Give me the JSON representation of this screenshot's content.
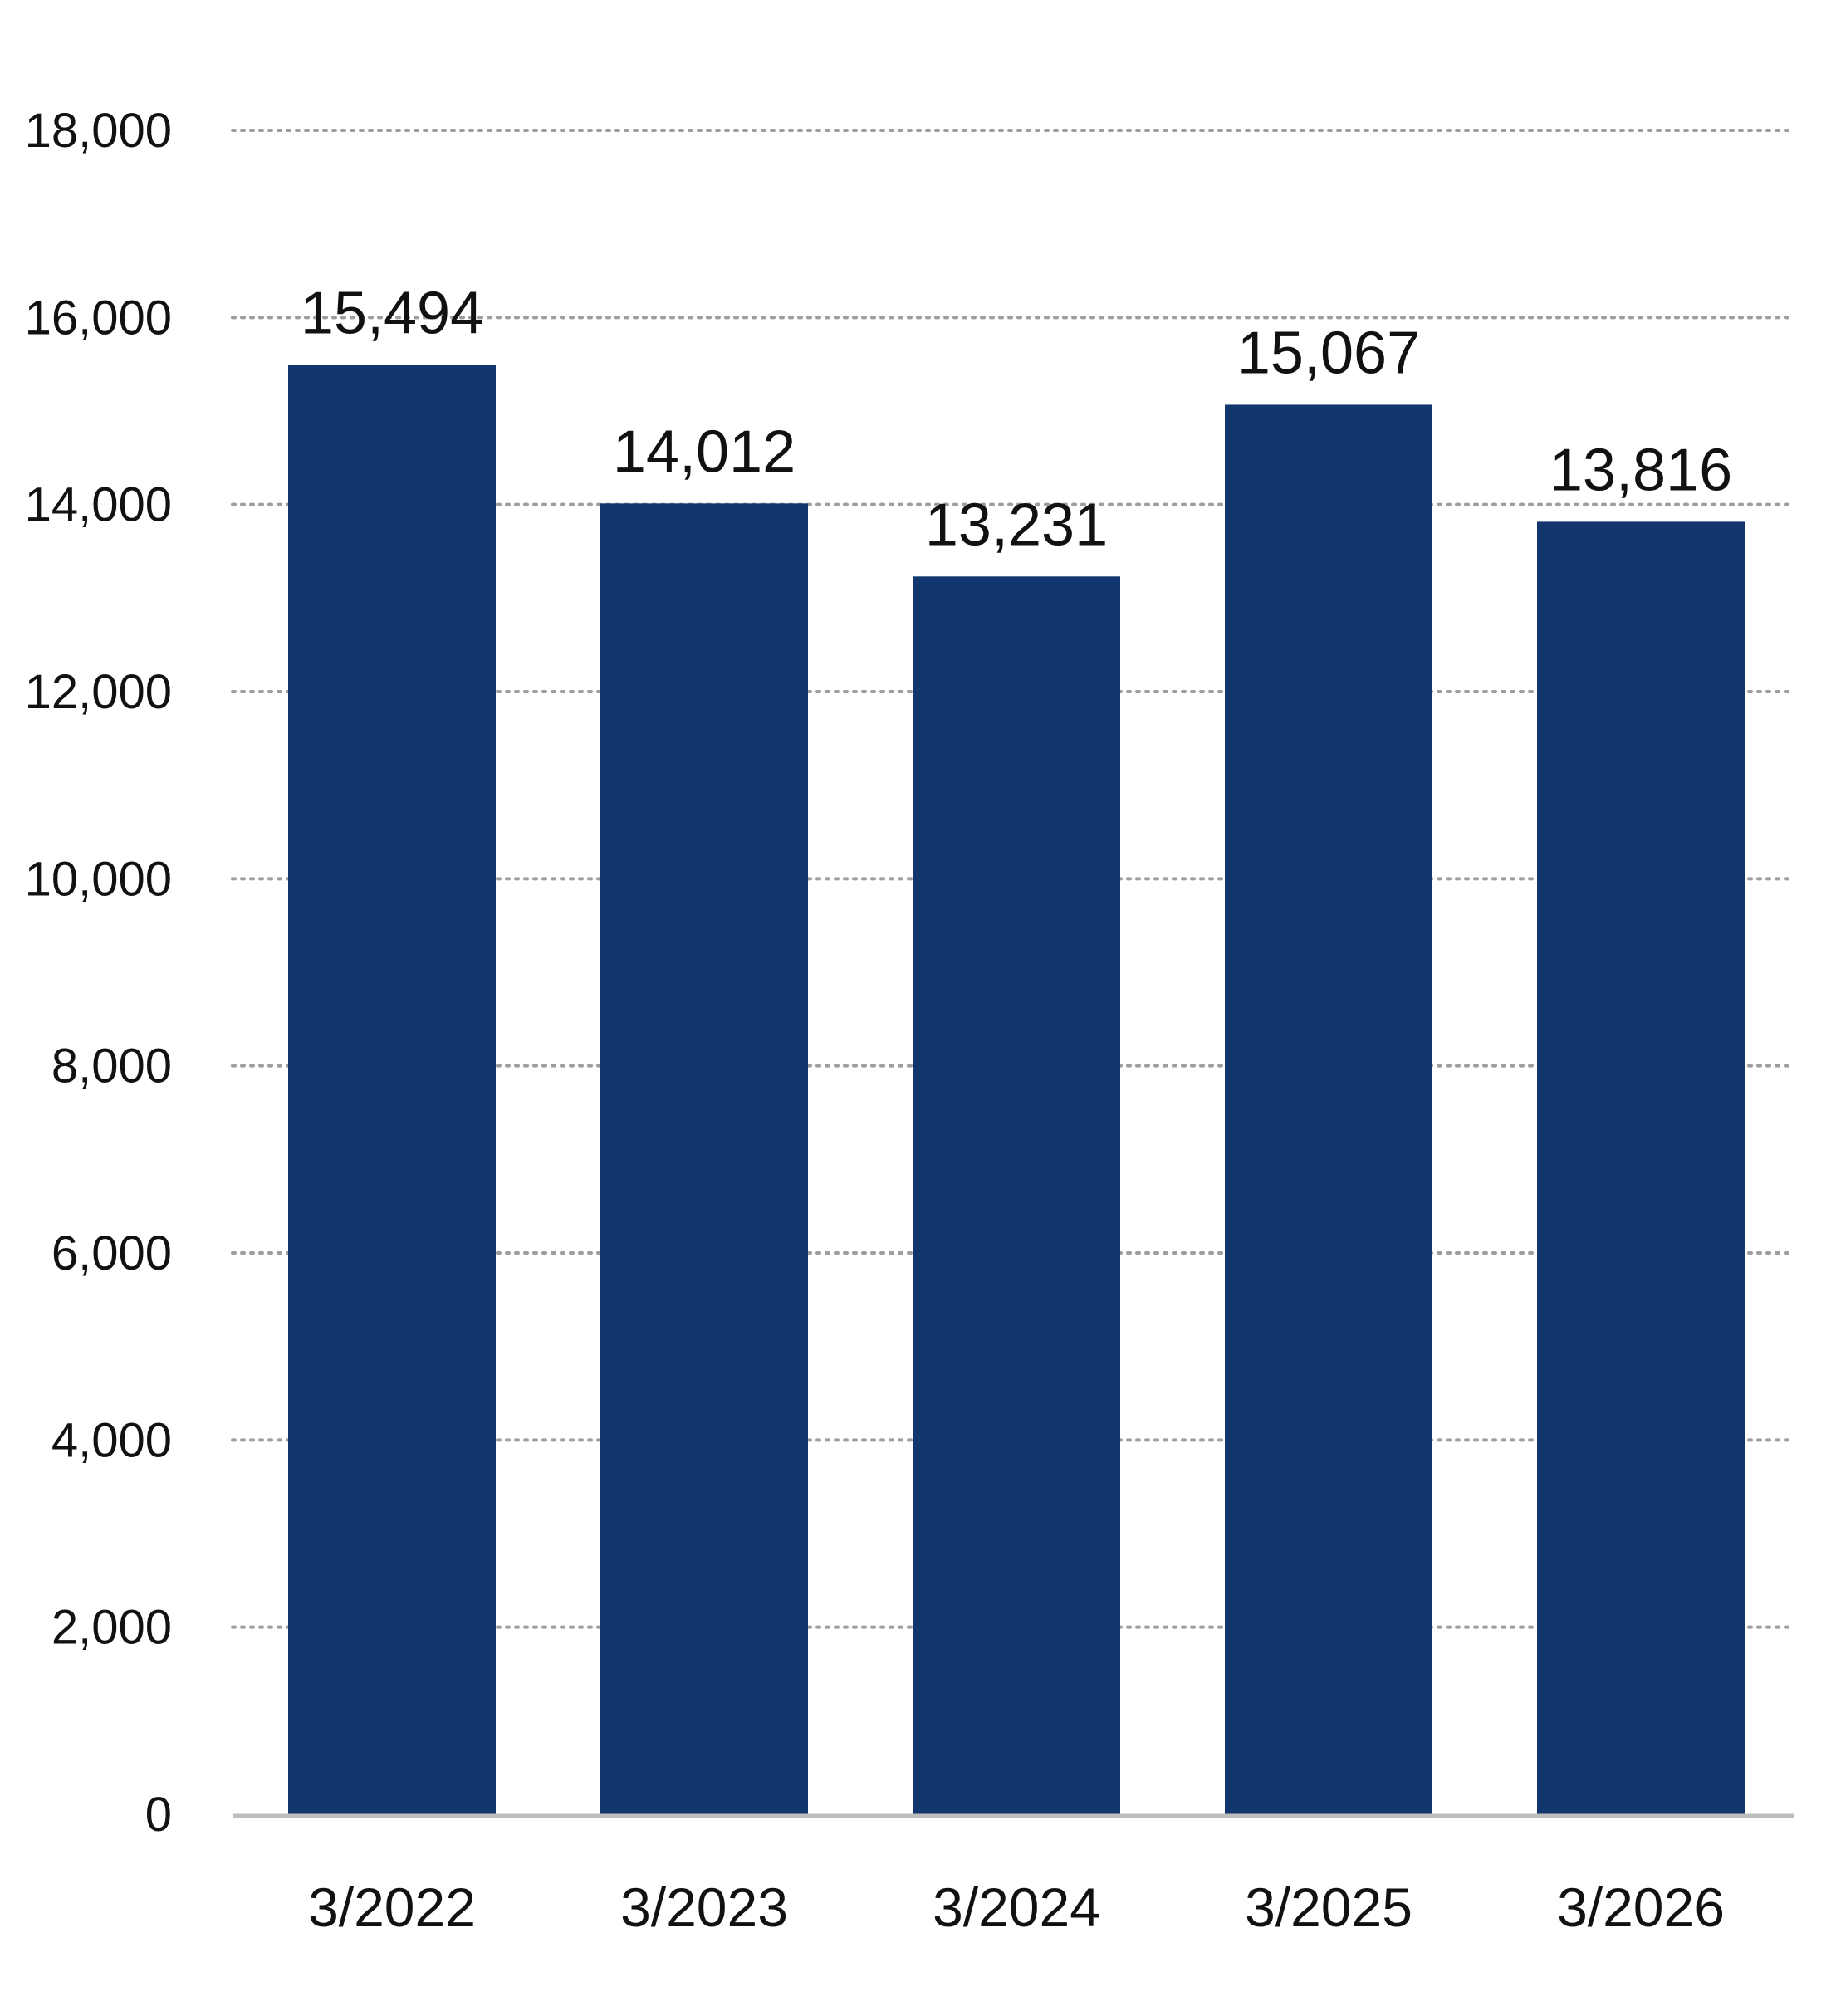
{
  "chart_data": {
    "type": "bar",
    "categories": [
      "3/2022",
      "3/2023",
      "3/2024",
      "3/2025",
      "3/2026"
    ],
    "values": [
      15494,
      14012,
      13231,
      15067,
      13816
    ],
    "data_labels": [
      "15,494",
      "14,012",
      "13,231",
      "15,067",
      "13,816"
    ],
    "yticks": [
      0,
      2000,
      4000,
      6000,
      8000,
      10000,
      12000,
      14000,
      16000,
      18000
    ],
    "ytick_labels": [
      "0",
      "2,000",
      "4,000",
      "6,000",
      "8,000",
      "10,000",
      "12,000",
      "14,000",
      "16,000",
      "18,000"
    ],
    "ylim": [
      0,
      18000
    ],
    "grid": "horizontal-dotted",
    "bar_color": "#12376F",
    "grid_color": "#9E9E9E",
    "axis_color": "#BDBDBD"
  }
}
